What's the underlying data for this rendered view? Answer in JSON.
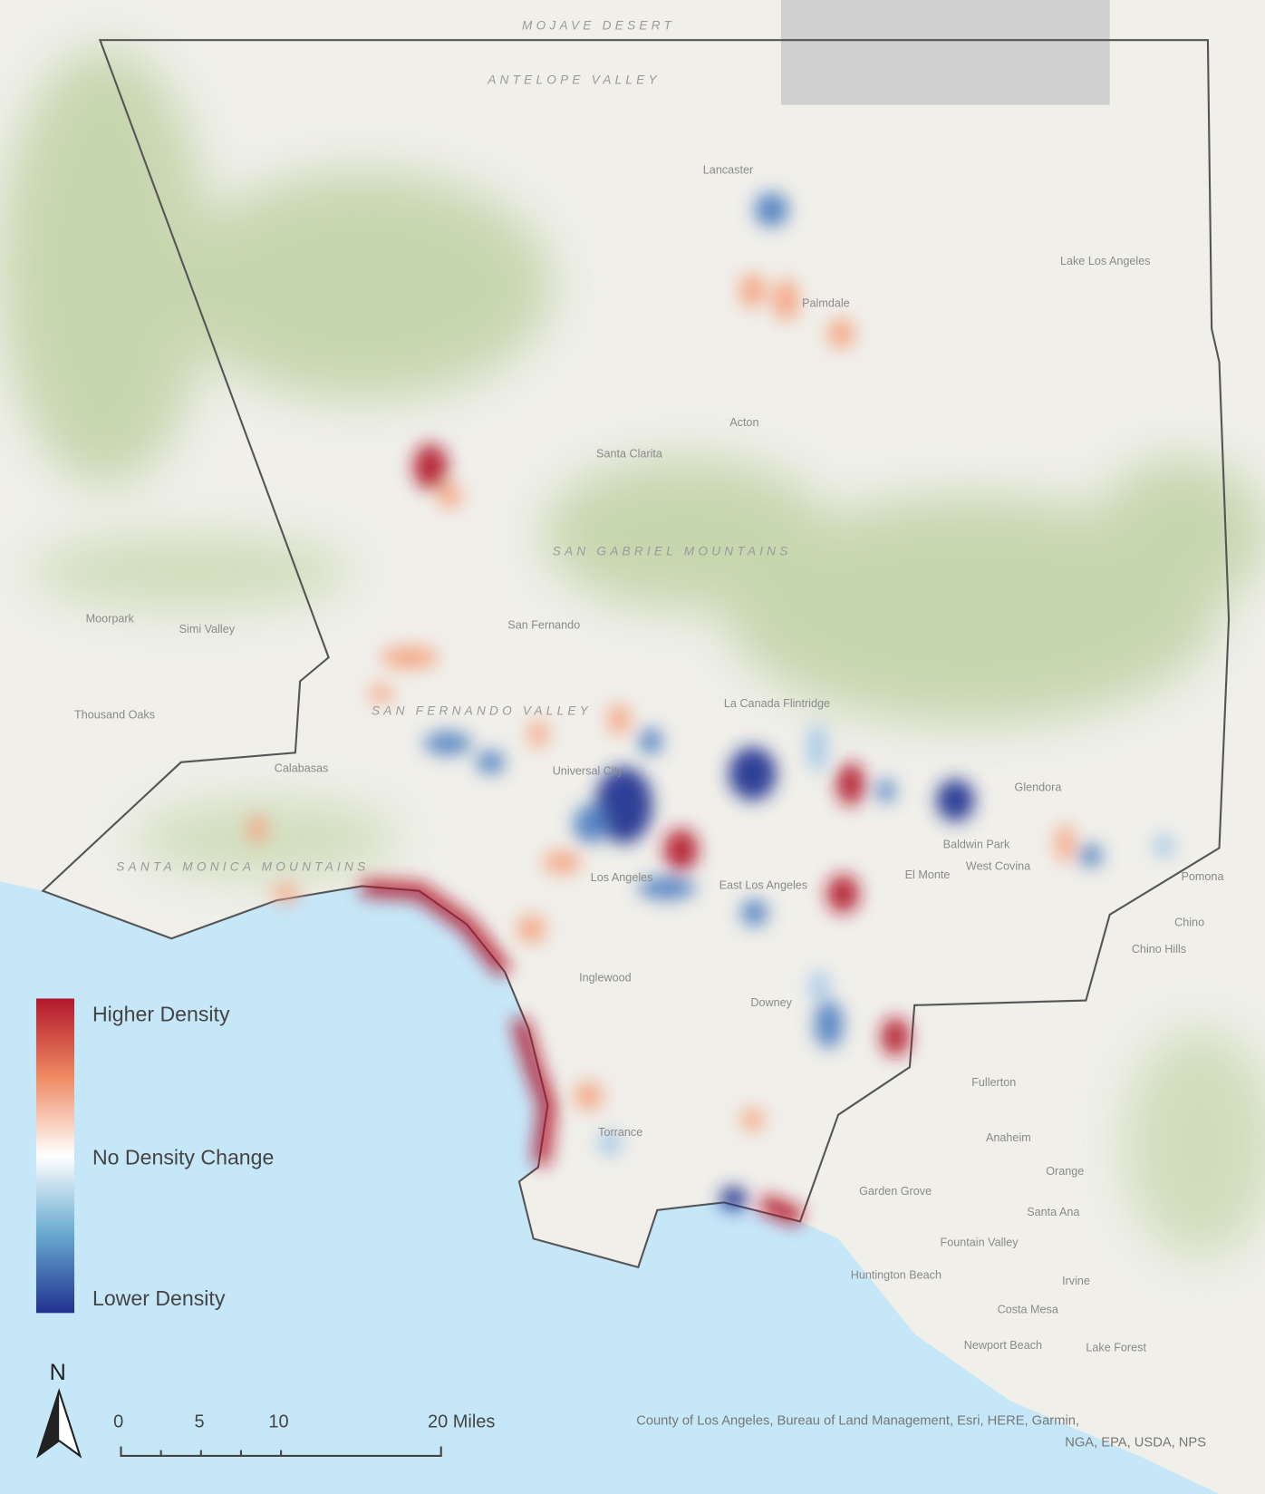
{
  "map": {
    "places": [
      "MOJAVE DESERT",
      "ANTELOPE VALLEY",
      "Lancaster",
      "Palmdale",
      "Lake Los Angeles",
      "Acton",
      "Santa Clarita",
      "SAN GABRIEL MOUNTAINS",
      "Moorpark",
      "Simi Valley",
      "Thousand Oaks",
      "SAN FERNANDO VALLEY",
      "San Fernando",
      "Calabasas",
      "SANTA MONICA MOUNTAINS",
      "Universal City",
      "Los Angeles",
      "East Los Angeles",
      "Inglewood",
      "Downey",
      "Glendora",
      "Baldwin Park",
      "West Covina",
      "El Monte",
      "Pomona",
      "Chino",
      "Chino Hills",
      "Fullerton",
      "Anaheim",
      "Orange",
      "Santa Ana",
      "Garden Grove",
      "Torrance",
      "Fountain Valley",
      "Huntington Beach",
      "Irvine",
      "Costa Mesa",
      "Newport Beach",
      "Lake Forest",
      "La Canada Flintridge"
    ],
    "legend": {
      "high": "Higher Density",
      "mid": "No Density Change",
      "low": "Lower Density"
    },
    "north": "N",
    "scale_bar": [
      "0",
      "5",
      "10",
      "20 Miles"
    ],
    "attribution": [
      "County of Los Angeles, Bureau of Land Management, Esri, HERE, Garmin,",
      "NGA, EPA, USDA, NPS"
    ]
  }
}
